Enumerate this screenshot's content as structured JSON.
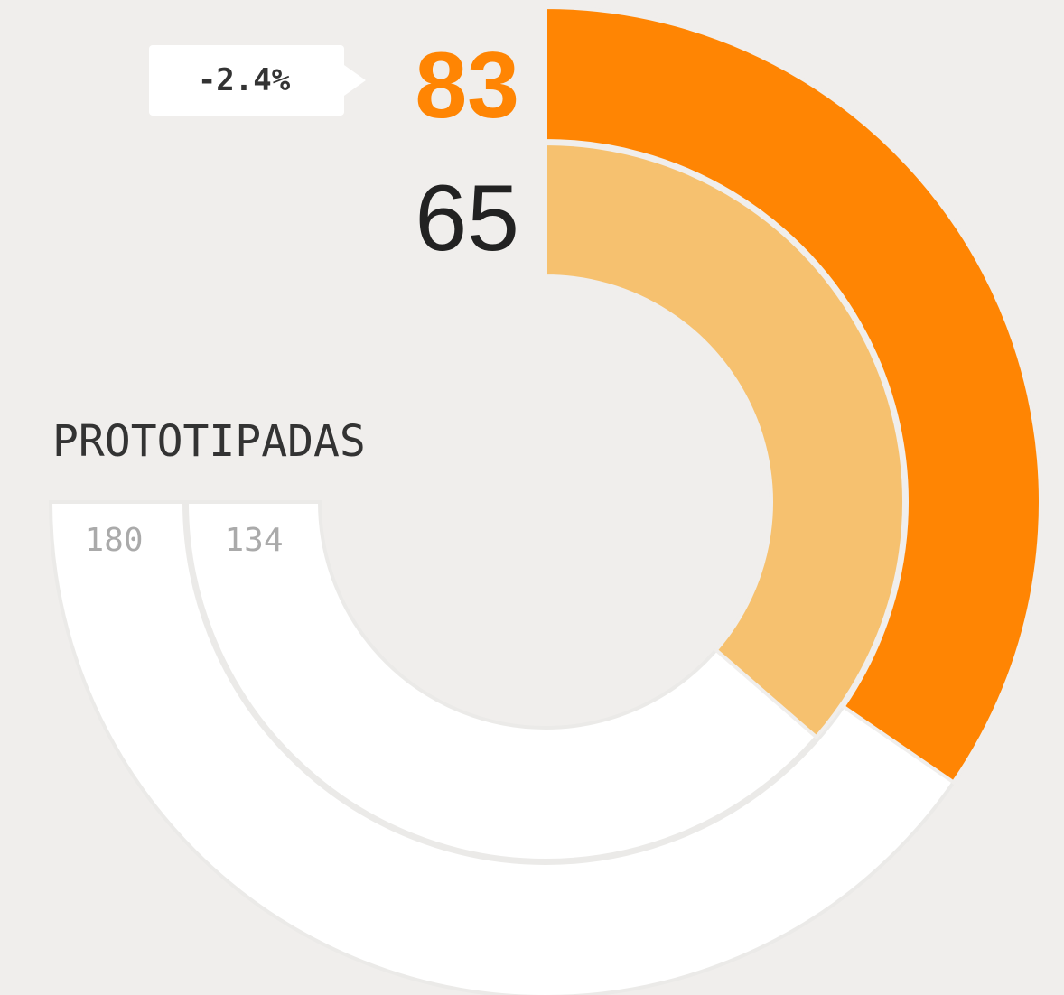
{
  "chart_data": {
    "type": "radial",
    "title": "PROTOTIPADAS",
    "annotation": "-2.4%",
    "series": [
      {
        "color": "#ff8503",
        "value": 83,
        "total": 180
      },
      {
        "color": "#f6c16f",
        "value": 65,
        "total": 134
      }
    ]
  }
}
